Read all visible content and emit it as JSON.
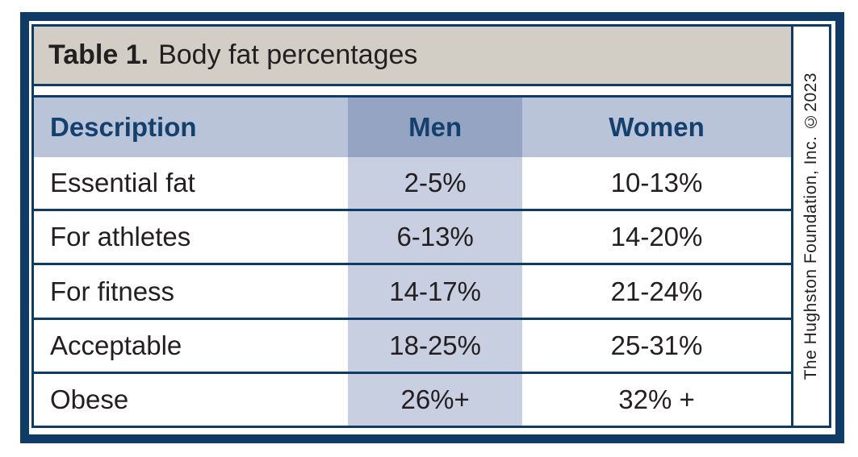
{
  "title": {
    "label": "Table 1.",
    "text": "Body fat percentages"
  },
  "credit": "The Hughston Foundation, Inc. ©2023",
  "chart_data": {
    "type": "table",
    "title": "Table 1. Body fat percentages",
    "columns": [
      "Description",
      "Men",
      "Women"
    ],
    "rows": [
      [
        "Essential fat",
        "2-5%",
        "10-13%"
      ],
      [
        "For athletes",
        "6-13%",
        "14-20%"
      ],
      [
        "For fitness",
        "14-17%",
        "21-24%"
      ],
      [
        "Acceptable",
        "18-25%",
        "25-31%"
      ],
      [
        "Obese",
        "26%+",
        "32% +"
      ]
    ]
  },
  "colors": {
    "frame_navy": "#0e3c66",
    "title_bar_bg": "#d3cec5",
    "header_row_bg": "#b9c4d9",
    "header_men_cell_bg": "#94a4c2",
    "men_column_bg": "#c7cfe1",
    "header_text": "#14406d",
    "body_text": "#231f20"
  }
}
